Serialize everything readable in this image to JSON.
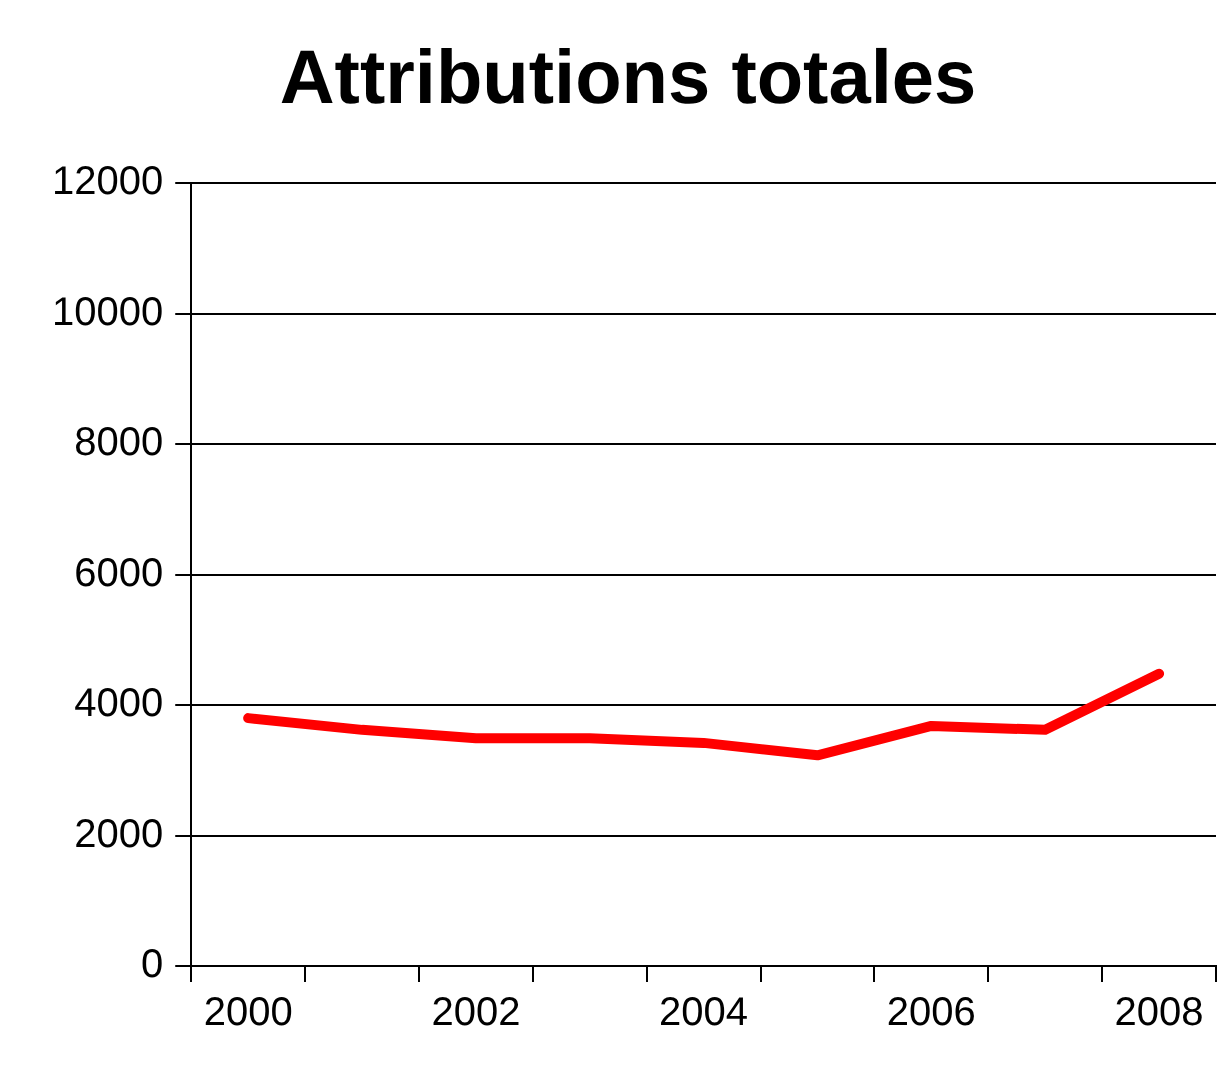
{
  "chart_data": {
    "type": "line",
    "title": "Attributions totales",
    "categories": [
      "2000",
      null,
      "2002",
      null,
      "2004",
      null,
      "2006",
      null,
      "2008"
    ],
    "series": [
      {
        "color": "#ff0000",
        "values": [
          3800,
          3620,
          3490,
          3490,
          3420,
          3230,
          3680,
          3620,
          4480
        ]
      }
    ],
    "ylim": [
      0,
      12000
    ],
    "yticks": [
      0,
      2000,
      4000,
      6000,
      8000,
      10000,
      12000
    ],
    "grid": "y",
    "legend": false,
    "marker": "none",
    "line_style": "solid"
  }
}
